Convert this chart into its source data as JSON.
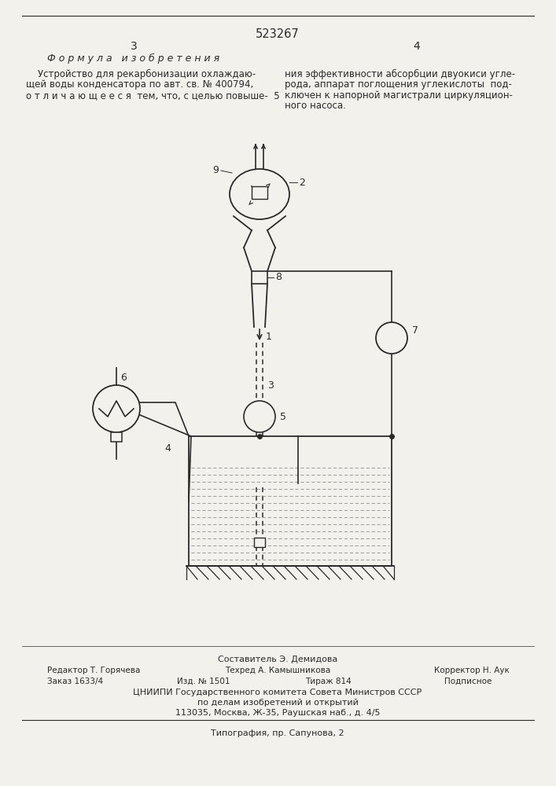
{
  "title": "523267",
  "page_left": "3",
  "page_right": "4",
  "header_left": "Ф о р м у л а   и з о б р е т е н и я",
  "text_left_1": "    Устройство для рекарбонизации охлаждаю-",
  "text_left_2": "щей воды конденсатора по авт. св. № 400794,",
  "text_left_3": "о т л и ч а ю щ е е с я  тем, что, с целью повыше-  5",
  "text_right_1": "ния эффективности абсорбции двуокиси угле-",
  "text_right_2": "рода, аппарат поглощения углекислоты  под-",
  "text_right_3": "ключен к напорной магистрали циркуляцион-",
  "text_right_4": "ного насоса.",
  "footer_composer": "Составитель Э. Демидова",
  "footer_editor": "Редактор Т. Горячева",
  "footer_techred": "Техред А. Камышникова",
  "footer_corrector": "Корректор Н. Аук",
  "footer_order": "Заказ 1633/4",
  "footer_issue": "Изд. № 1501",
  "footer_print_run": "Тираж 814",
  "footer_signed": "Подписное",
  "footer_org": "ЦНИИПИ Государственного комитета Совета Министров СССР",
  "footer_org2": "по делам изобретений и открытий",
  "footer_addr": "113035, Москва, Ж-35, Раушская наб., д. 4/5",
  "footer_print": "Типография, пр. Сапунова, 2",
  "bg_color": "#f2f1ec",
  "line_color": "#2a2a2a"
}
